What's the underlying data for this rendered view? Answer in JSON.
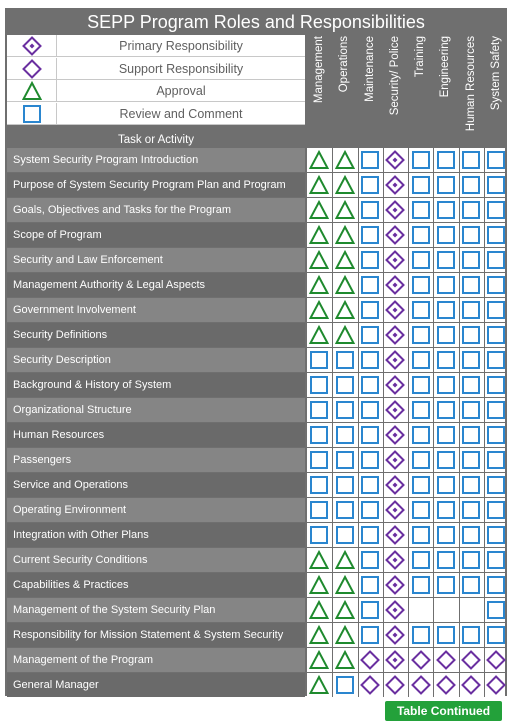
{
  "title": "SEPP Program Roles and Responsibilities",
  "legend": [
    {
      "icon": "diamond-dot-icon",
      "label": "Primary Responsibility"
    },
    {
      "icon": "diamond-icon",
      "label": "Support Responsibility"
    },
    {
      "icon": "triangle-icon",
      "label": "Approval"
    },
    {
      "icon": "square-icon",
      "label": "Review and Comment"
    }
  ],
  "task_header": "Task or Activity",
  "columns": [
    "Management",
    "Operations",
    "Maintenance",
    "Security/ Police",
    "Training",
    "Engineering",
    "Human Resources",
    "System Safety"
  ],
  "symbols": {
    "P": "diamond-dot-icon",
    "S": "diamond-icon",
    "A": "triangle-icon",
    "R": "square-icon",
    "": "blank"
  },
  "colors": {
    "approval": "#1f8a2e",
    "review": "#2a86cf",
    "primary": "#6a2fa0",
    "support": "#6a2fa0",
    "button": "#23a13a"
  },
  "rows": [
    {
      "task": "System Security Program Introduction",
      "cells": [
        "A",
        "A",
        "R",
        "P",
        "R",
        "R",
        "R",
        "R"
      ]
    },
    {
      "task": "Purpose of System Security Program Plan and Program",
      "cells": [
        "A",
        "A",
        "R",
        "P",
        "R",
        "R",
        "R",
        "R"
      ]
    },
    {
      "task": "Goals, Objectives and Tasks for the Program",
      "cells": [
        "A",
        "A",
        "R",
        "P",
        "R",
        "R",
        "R",
        "R"
      ]
    },
    {
      "task": "Scope of Program",
      "cells": [
        "A",
        "A",
        "R",
        "P",
        "R",
        "R",
        "R",
        "R"
      ]
    },
    {
      "task": "Security and Law Enforcement",
      "cells": [
        "A",
        "A",
        "R",
        "P",
        "R",
        "R",
        "R",
        "R"
      ]
    },
    {
      "task": "Management Authority & Legal Aspects",
      "cells": [
        "A",
        "A",
        "R",
        "P",
        "R",
        "R",
        "R",
        "R"
      ]
    },
    {
      "task": "Government Involvement",
      "cells": [
        "A",
        "A",
        "R",
        "P",
        "R",
        "R",
        "R",
        "R"
      ]
    },
    {
      "task": "Security Definitions",
      "cells": [
        "A",
        "A",
        "R",
        "P",
        "R",
        "R",
        "R",
        "R"
      ]
    },
    {
      "task": "Security Description",
      "cells": [
        "R",
        "R",
        "R",
        "P",
        "R",
        "R",
        "R",
        "R"
      ]
    },
    {
      "task": "Background & History of System",
      "cells": [
        "R",
        "R",
        "R",
        "P",
        "R",
        "R",
        "R",
        "R"
      ]
    },
    {
      "task": "Organizational Structure",
      "cells": [
        "R",
        "R",
        "R",
        "P",
        "R",
        "R",
        "R",
        "R"
      ]
    },
    {
      "task": "Human Resources",
      "cells": [
        "R",
        "R",
        "R",
        "P",
        "R",
        "R",
        "R",
        "R"
      ]
    },
    {
      "task": "Passengers",
      "cells": [
        "R",
        "R",
        "R",
        "P",
        "R",
        "R",
        "R",
        "R"
      ]
    },
    {
      "task": "Service and Operations",
      "cells": [
        "R",
        "R",
        "R",
        "P",
        "R",
        "R",
        "R",
        "R"
      ]
    },
    {
      "task": "Operating Environment",
      "cells": [
        "R",
        "R",
        "R",
        "P",
        "R",
        "R",
        "R",
        "R"
      ]
    },
    {
      "task": "Integration with Other Plans",
      "cells": [
        "R",
        "R",
        "R",
        "P",
        "R",
        "R",
        "R",
        "R"
      ]
    },
    {
      "task": "Current Security Conditions",
      "cells": [
        "A",
        "A",
        "R",
        "P",
        "R",
        "R",
        "R",
        "R"
      ]
    },
    {
      "task": "Capabilities & Practices",
      "cells": [
        "A",
        "A",
        "R",
        "P",
        "R",
        "R",
        "R",
        "R"
      ]
    },
    {
      "task": "Management of the System Security Plan",
      "cells": [
        "A",
        "A",
        "R",
        "P",
        "",
        "",
        "",
        "R"
      ]
    },
    {
      "task": "Responsibility for Mission Statement & System Security",
      "cells": [
        "A",
        "A",
        "R",
        "P",
        "R",
        "R",
        "R",
        "R"
      ]
    },
    {
      "task": "Management of the Program",
      "cells": [
        "A",
        "A",
        "S",
        "P",
        "S",
        "S",
        "S",
        "S"
      ]
    },
    {
      "task": "General Manager",
      "cells": [
        "A",
        "R",
        "S",
        "S",
        "S",
        "S",
        "S",
        "S"
      ]
    }
  ],
  "continue_button": "Table Continued"
}
